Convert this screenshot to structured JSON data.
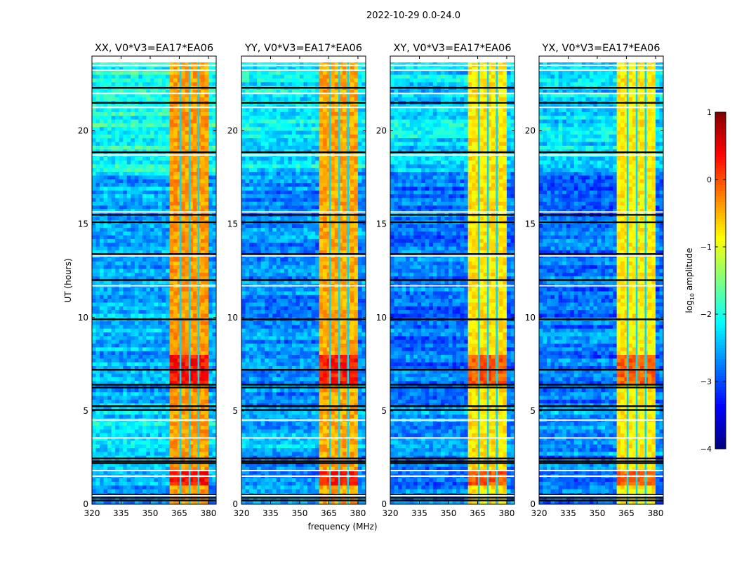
{
  "chart_data": {
    "type": "heatmap",
    "title": "2022-10-29 0.0-24.0",
    "xlabel": "frequency (MHz)",
    "ylabel": "UT (hours)",
    "xlim": [
      320,
      384
    ],
    "ylim": [
      0,
      24
    ],
    "xticks": [
      "320",
      "335",
      "350",
      "365",
      "380"
    ],
    "xtick_values": [
      320,
      335,
      350,
      365,
      380
    ],
    "yticks": [
      "0",
      "5",
      "10",
      "15",
      "20"
    ],
    "ytick_values": [
      0,
      5,
      10,
      15,
      20
    ],
    "colorbar": {
      "label_prefix": "log",
      "label_sub": "10",
      "label_suffix": " amplitude",
      "range": [
        -4,
        1
      ],
      "ticks": [
        "1",
        "0",
        "−1",
        "−2",
        "−3",
        "−4"
      ],
      "tick_values": [
        1,
        0,
        -1,
        -2,
        -3,
        -4
      ],
      "colormap": "jet"
    },
    "background_level": -2.7,
    "rfi_band_mhz": [
      360.5,
      380.5
    ],
    "rfi_gaps_mhz": [
      365.5,
      370.2,
      374.8
    ],
    "rfi_high_hours": [
      [
        15.9,
        17.5
      ],
      [
        22.2,
        23.0
      ]
    ],
    "flagged_black_hours": [
      0.2,
      0.35,
      0.5,
      2.2,
      2.3,
      2.45,
      5.05,
      5.25,
      6.25,
      6.4,
      7.2,
      9.9,
      12.0,
      13.4,
      15.1,
      15.5,
      18.85,
      21.5,
      22.3
    ],
    "flagged_white_hours": [
      0.45,
      1.5,
      1.8,
      3.55,
      4.5,
      11.7,
      13.3,
      15.65,
      18.7,
      21.25,
      22.0,
      23.25,
      23.5,
      23.75
    ],
    "panels": [
      {
        "title": "XX, V0*V3=EA17*EA06",
        "rfi_level": -0.4,
        "bg_offset": 0.2
      },
      {
        "title": "YY, V0*V3=EA17*EA06",
        "rfi_level": -0.45,
        "bg_offset": 0.0
      },
      {
        "title": "XY, V0*V3=EA17*EA06",
        "rfi_level": -0.75,
        "bg_offset": -0.1
      },
      {
        "title": "YX, V0*V3=EA17*EA06",
        "rfi_level": -0.8,
        "bg_offset": -0.1
      }
    ]
  }
}
